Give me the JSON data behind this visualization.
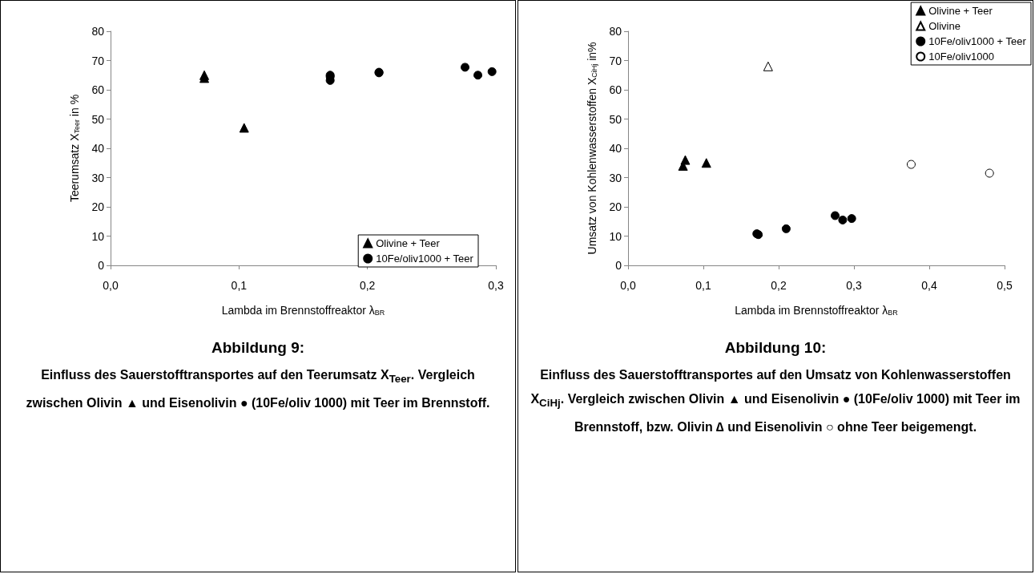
{
  "chart_data": [
    {
      "type": "scatter",
      "title": "Abbildung 9:",
      "subtitle": "Einfluss des Sauerstofftransportes auf den Teerumsatz X$_{Teer}$. Vergleich zwischen Olivin ▲ und Eisenolivin ● (10Fe/oliv 1000) mit Teer im Brennstoff.",
      "xlabel": "Lambda im Brennstoffreaktor λ$_{BR}$",
      "ylabel": "Teerumsatz X$_{Teer}$ in %",
      "series": [
        {
          "name": "Olivine + Teer",
          "color": "#000000",
          "marker": "triangle",
          "x": [
            0.073,
            0.073,
            0.104
          ],
          "values": [
            65,
            64,
            47
          ]
        },
        {
          "name": "10Fe/oliv1000 + Teer",
          "color": "#000000",
          "marker": "circle",
          "x": [
            0.171,
            0.171,
            0.171,
            0.209,
            0.209,
            0.276,
            0.286,
            0.297
          ],
          "values": [
            65,
            64.5,
            63.2,
            66,
            65.8,
            67.7,
            65,
            66.2
          ]
        }
      ],
      "xlim": [
        0,
        0.3
      ],
      "xticks": [
        {
          "value": 0,
          "label": "0,0"
        },
        {
          "value": 0.1,
          "label": "0,1"
        },
        {
          "value": 0.2,
          "label": "0,2"
        },
        {
          "value": 0.3,
          "label": "0,3"
        }
      ],
      "ylim": [
        0,
        80
      ],
      "yticks": [
        0,
        10,
        20,
        30,
        40,
        50,
        60,
        70,
        80
      ],
      "grid": false,
      "legend": "bottom right"
    },
    {
      "type": "scatter",
      "title": "Abbildung 10:",
      "subtitle": "Einfluss des Sauerstofftransportes auf den Umsatz von Kohlenwasserstoffen X$_{CiHj}$. Vergleich zwischen Olivin ▲ und Eisenolivin ● (10Fe/oliv 1000) mit Teer im Brennstoff, bzw. Olivin ∆ und Eisenolivin ○ ohne Teer beigemengt.",
      "xlabel": "Lambda im Brennstoffreaktor λ$_{BR}$",
      "ylabel": "Umsatz von Kohlenwasserstoffen X$_{CiHj}$ in%",
      "series": [
        {
          "name": "Olivine + Teer",
          "color": "#000000",
          "marker": "triangle",
          "x": [
            0.073,
            0.076,
            0.104
          ],
          "values": [
            34,
            36,
            35
          ]
        },
        {
          "name": "Olivine",
          "color": "#ffffff",
          "marker": "triangle",
          "x": [
            0.186
          ],
          "values": [
            68
          ]
        },
        {
          "name": "10Fe/oliv1000 + Teer",
          "color": "#000000",
          "marker": "circle",
          "x": [
            0.171,
            0.173,
            0.21,
            0.275,
            0.285,
            0.297
          ],
          "values": [
            10.8,
            10.5,
            12.5,
            17,
            15.5,
            16
          ]
        },
        {
          "name": "10Fe/oliv1000",
          "color": "#ffffff",
          "marker": "circle",
          "x": [
            0.376,
            0.48
          ],
          "values": [
            34.5,
            31.5
          ]
        }
      ],
      "xlim": [
        0,
        0.5
      ],
      "xticks": [
        {
          "value": 0,
          "label": "0,0"
        },
        {
          "value": 0.1,
          "label": "0,1"
        },
        {
          "value": 0.2,
          "label": "0,2"
        },
        {
          "value": 0.3,
          "label": "0,3"
        },
        {
          "value": 0.4,
          "label": "0,4"
        },
        {
          "value": 0.5,
          "label": "0,5"
        }
      ],
      "ylim": [
        0,
        80
      ],
      "yticks": [
        0,
        10,
        20,
        30,
        40,
        50,
        60,
        70,
        80
      ],
      "grid": false,
      "legend": "top right"
    }
  ]
}
